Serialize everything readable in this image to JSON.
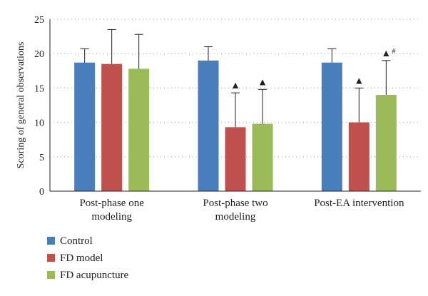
{
  "chart_data": {
    "type": "bar",
    "title": "",
    "xlabel": "",
    "ylabel": "Scoring of general observations",
    "ylim": [
      0,
      25
    ],
    "yticks": [
      0,
      5,
      10,
      15,
      20,
      25
    ],
    "grid": "dotted horizontal",
    "legend_position": "bottom-left",
    "categories": [
      [
        "Post-phase one",
        "modeling"
      ],
      [
        "Post-phase two",
        "modeling"
      ],
      [
        "Post-EA intervention"
      ]
    ],
    "series": [
      {
        "name": "Control",
        "color": "#4a7ebb",
        "values": [
          18.7,
          19.0,
          18.7
        ],
        "errors": [
          2.0,
          2.0,
          2.0
        ]
      },
      {
        "name": "FD model",
        "color": "#c0504d",
        "values": [
          18.5,
          9.3,
          10.0
        ],
        "errors": [
          5.0,
          5.0,
          5.0
        ]
      },
      {
        "name": "FD acupuncture",
        "color": "#9bbb59",
        "values": [
          17.8,
          9.8,
          14.0
        ],
        "errors": [
          5.0,
          5.0,
          5.0
        ]
      }
    ],
    "annotations": [
      {
        "series": 1,
        "category": 1,
        "symbol": "▲",
        "suffix": ""
      },
      {
        "series": 2,
        "category": 1,
        "symbol": "▲",
        "suffix": ""
      },
      {
        "series": 1,
        "category": 2,
        "symbol": "▲",
        "suffix": ""
      },
      {
        "series": 2,
        "category": 2,
        "symbol": "▲",
        "suffix": "#"
      }
    ]
  }
}
